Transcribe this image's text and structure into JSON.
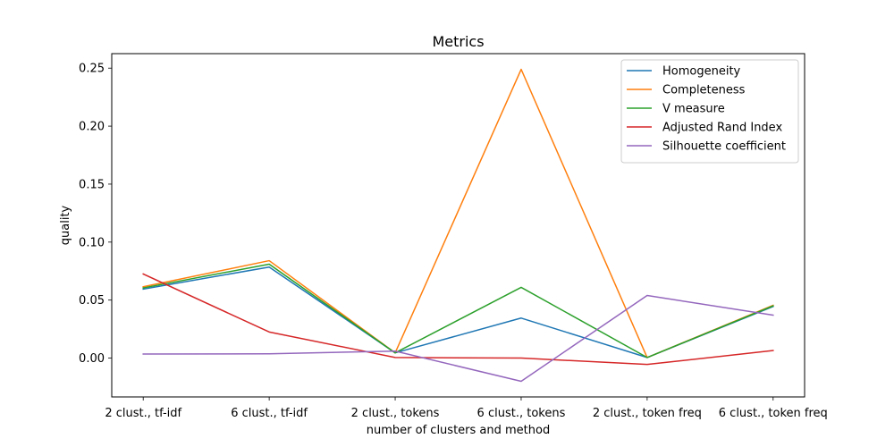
{
  "chart_data": {
    "type": "line",
    "title": "Metrics",
    "xlabel": "number of clusters and method",
    "ylabel": "quality",
    "categories": [
      "2 clust., tf-idf",
      "6 clust., tf-idf",
      "2 clust., tokens",
      "6 clust., tokens",
      "2 clust., token freq",
      "6 clust., token freq"
    ],
    "ylim": [
      -0.0335,
      0.2625
    ],
    "yticks": [
      "0.00",
      "0.05",
      "0.10",
      "0.15",
      "0.20",
      "0.25"
    ],
    "grid": false,
    "legend_position": "top-right",
    "series": [
      {
        "name": "Homogeneity",
        "color": "#1f77b4",
        "values": [
          0.0595,
          0.0785,
          0.0045,
          0.0345,
          0.0005,
          0.0445
        ]
      },
      {
        "name": "Completeness",
        "color": "#ff7f0e",
        "values": [
          0.0615,
          0.084,
          0.0045,
          0.249,
          0.0005,
          0.0455
        ]
      },
      {
        "name": "V measure",
        "color": "#2ca02c",
        "values": [
          0.0605,
          0.081,
          0.0045,
          0.061,
          0.0005,
          0.045
        ]
      },
      {
        "name": "Adjusted Rand Index",
        "color": "#d62728",
        "values": [
          0.0725,
          0.0225,
          0.0005,
          0.0,
          -0.0055,
          0.0065
        ]
      },
      {
        "name": "Silhouette coefficient",
        "color": "#9467bd",
        "values": [
          0.0035,
          0.0037,
          0.006,
          -0.02,
          0.054,
          0.037
        ]
      }
    ]
  }
}
